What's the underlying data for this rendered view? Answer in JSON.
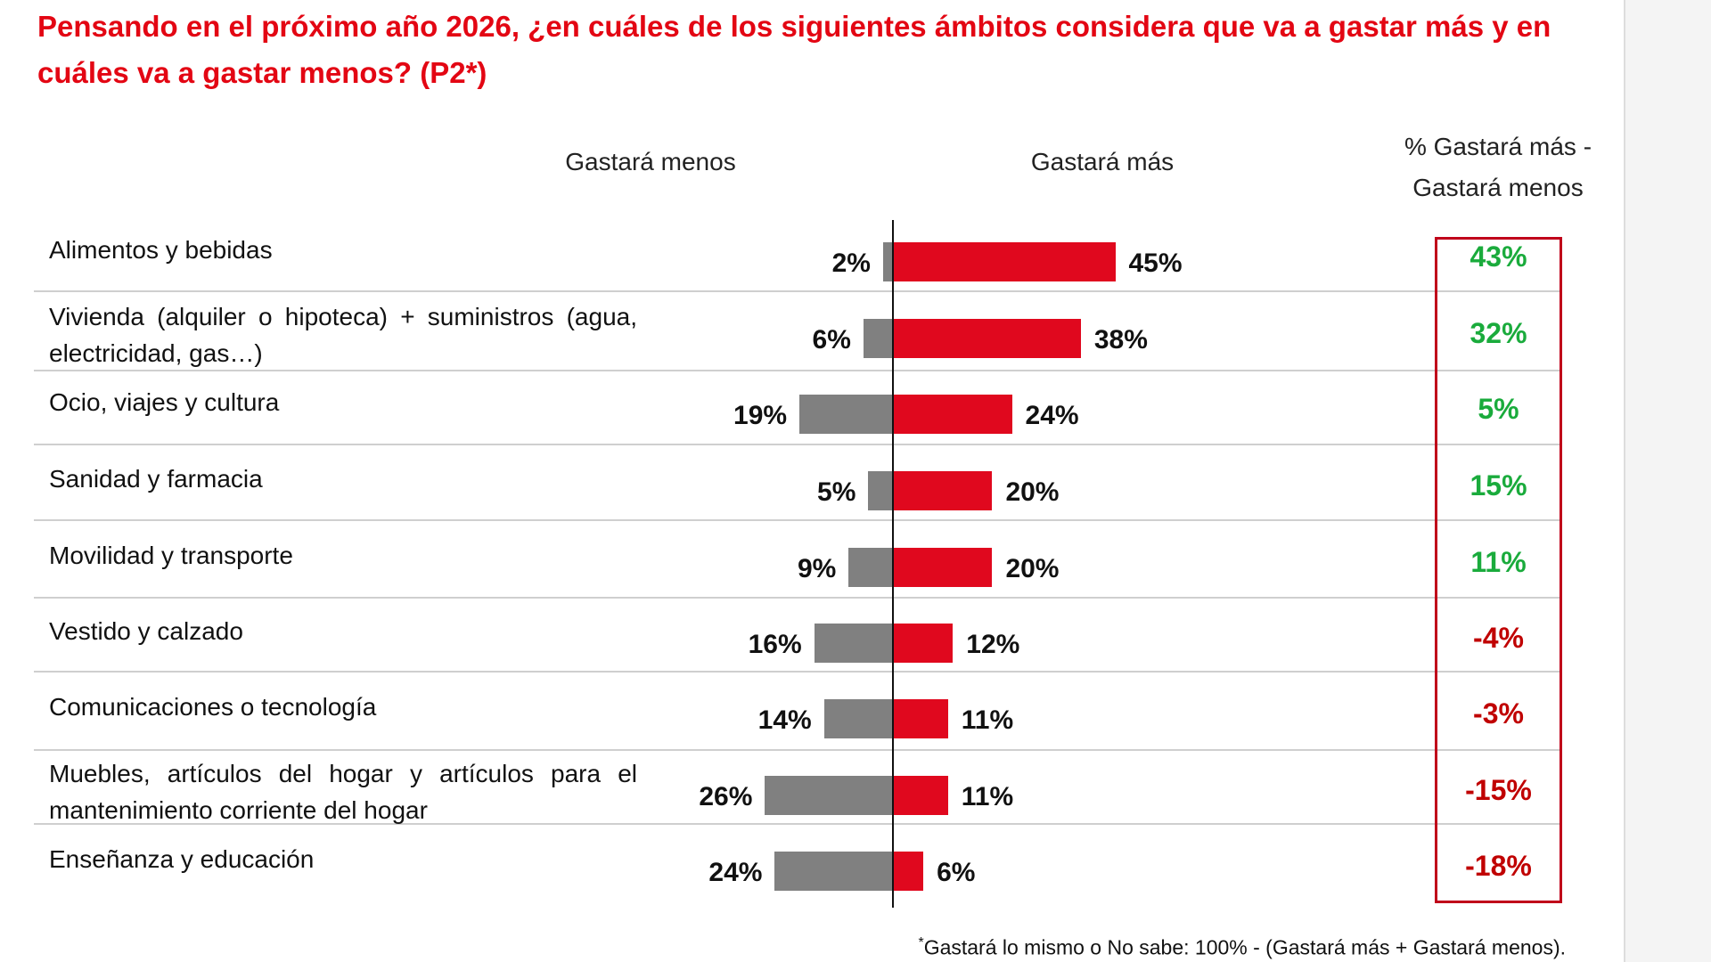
{
  "title": "Pensando en el próximo año 2026, ¿en cuáles de los siguientes ámbitos considera que va a gastar más y en cuáles va a gastar menos? (P2*)",
  "chart_data": {
    "type": "bar",
    "orientation": "horizontal-diverging",
    "column_headers": {
      "less": "Gastará menos",
      "more": "Gastará más",
      "diff_line1": "% Gastará más -",
      "diff_line2": "Gastará menos"
    },
    "categories": [
      "Alimentos y bebidas",
      "Vivienda (alquiler o hipoteca) + suministros (agua, electricidad, gas…)",
      "Ocio, viajes y cultura",
      "Sanidad y farmacia",
      "Movilidad y transporte",
      "Vestido y calzado",
      "Comunicaciones o tecnología",
      "Muebles, artículos del hogar y artículos para el mantenimiento corriente del hogar",
      "Enseñanza y educación"
    ],
    "series": [
      {
        "name": "Gastará menos",
        "color": "#808080",
        "values": [
          2,
          6,
          19,
          5,
          9,
          16,
          14,
          26,
          24
        ]
      },
      {
        "name": "Gastará más",
        "color": "#e0081e",
        "values": [
          45,
          38,
          24,
          20,
          20,
          12,
          11,
          11,
          6
        ]
      }
    ],
    "difference": {
      "values": [
        43,
        32,
        5,
        15,
        11,
        -4,
        -3,
        -15,
        -18
      ],
      "positive_color": "#1aab3c",
      "negative_color": "#c00000"
    },
    "value_suffix": "%"
  },
  "footnote_mark": "*",
  "footnote": "Gastará lo mismo o No sabe: 100% - (Gastará más + Gastará menos)."
}
